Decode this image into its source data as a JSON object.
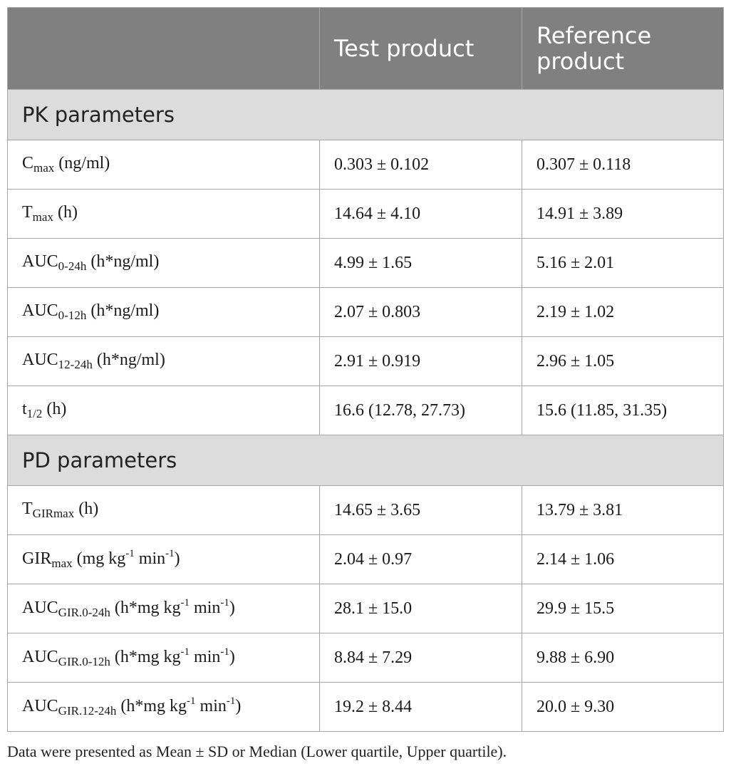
{
  "header": {
    "col1": "",
    "col2": "Test product",
    "col3": "Reference product"
  },
  "sections": [
    {
      "title": "PK parameters",
      "rows": [
        {
          "base": "C",
          "sub": "max",
          "sup1": "",
          "mid": "",
          "sup2": "",
          "tail": "(ng/ml)",
          "test": "0.303 ± 0.102",
          "ref": "0.307 ± 0.118"
        },
        {
          "base": "T",
          "sub": "max",
          "sup1": "",
          "mid": "",
          "sup2": "",
          "tail": "(h)",
          "test": "14.64 ± 4.10",
          "ref": "14.91 ± 3.89"
        },
        {
          "base": "AUC",
          "sub": "0-24h",
          "sup1": "",
          "mid": "",
          "sup2": "",
          "tail": "(h*ng/ml)",
          "test": "4.99 ± 1.65",
          "ref": "5.16 ± 2.01"
        },
        {
          "base": "AUC",
          "sub": "0-12h",
          "sup1": "",
          "mid": "",
          "sup2": "",
          "tail": "(h*ng/ml)",
          "test": "2.07 ± 0.803",
          "ref": "2.19 ± 1.02"
        },
        {
          "base": "AUC",
          "sub": "12-24h",
          "sup1": "",
          "mid": "",
          "sup2": "",
          "tail": "(h*ng/ml)",
          "test": "2.91 ± 0.919",
          "ref": "2.96 ± 1.05"
        },
        {
          "base": "t",
          "sub": "1/2",
          "sup1": "",
          "mid": "",
          "sup2": "",
          "tail": "(h)",
          "test": "16.6 (12.78, 27.73)",
          "ref": "15.6 (11.85, 31.35)"
        }
      ]
    },
    {
      "title": "PD parameters",
      "rows": [
        {
          "base": "T",
          "sub": "GIRmax",
          "sup1": "",
          "mid": "",
          "sup2": "",
          "tail": "(h)",
          "test": "14.65 ± 3.65",
          "ref": "13.79 ± 3.81"
        },
        {
          "base": "GIR",
          "sub": "max",
          "sup1": "-1",
          "mid": "(mg kg",
          "sup2": "-1",
          "tail": ")",
          "mid2": " min",
          "test": "2.04 ± 0.97",
          "ref": "2.14 ± 1.06"
        },
        {
          "base": "AUC",
          "sub": "GIR.0-24h",
          "sup1": "-1",
          "mid": "(h*mg kg",
          "sup2": "-1",
          "tail": ")",
          "mid2": " min",
          "test": "28.1 ± 15.0",
          "ref": "29.9 ± 15.5"
        },
        {
          "base": "AUC",
          "sub": "GIR.0-12h",
          "sup1": "-1",
          "mid": "(h*mg kg",
          "sup2": "-1",
          "tail": ")",
          "mid2": " min",
          "test": "8.84 ± 7.29",
          "ref": "9.88 ± 6.90"
        },
        {
          "base": "AUC",
          "sub": "GIR.12-24h",
          "sup1": "-1",
          "mid": "(h*mg kg",
          "sup2": "-1",
          "tail": ")",
          "mid2": " min",
          "test": "19.2 ± 8.44",
          "ref": "20.0 ± 9.30"
        }
      ]
    }
  ],
  "footnote": "Data were presented as Mean ± SD or Median (Lower quartile, Upper quartile)."
}
